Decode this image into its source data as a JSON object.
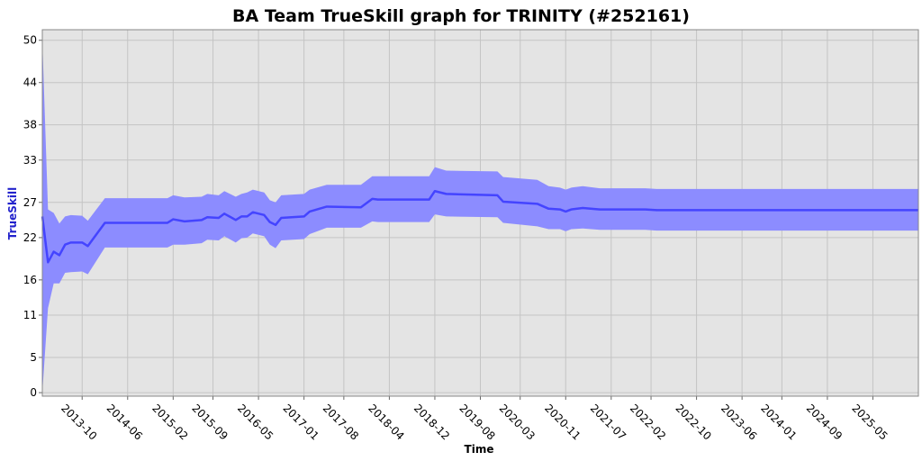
{
  "chart_data": {
    "type": "band-line",
    "title": "BA Team TrueSkill graph for TRINITY (#252161)",
    "xlabel": "Time",
    "ylabel": "TrueSkill",
    "color": "#4444ff",
    "band_color": "#8c8cff",
    "x": [
      "2013-03",
      "2013-04",
      "2013-05",
      "2013-06",
      "2013-07",
      "2013-08",
      "2013-10",
      "2013-11",
      "2014-02",
      "2015-01",
      "2015-02",
      "2015-04",
      "2015-07",
      "2015-08",
      "2015-10",
      "2015-11",
      "2016-01",
      "2016-02",
      "2016-03",
      "2016-04",
      "2016-06",
      "2016-07",
      "2016-08",
      "2016-09",
      "2017-01",
      "2017-02",
      "2017-05",
      "2017-11",
      "2018-01",
      "2018-02",
      "2018-11",
      "2018-12",
      "2019-02",
      "2019-11",
      "2019-12",
      "2020-06",
      "2020-08",
      "2020-10",
      "2020-11",
      "2020-12",
      "2021-02",
      "2021-05",
      "2022-01",
      "2022-03",
      "2026-01"
    ],
    "values": [
      25,
      18.5,
      20,
      19.5,
      21,
      21.3,
      21.3,
      20.8,
      24.1,
      24.1,
      24.6,
      24.3,
      24.5,
      24.9,
      24.8,
      25.4,
      24.5,
      25,
      25,
      25.6,
      25.2,
      24.2,
      23.8,
      24.8,
      25,
      25.7,
      26.4,
      26.3,
      27.5,
      27.4,
      27.4,
      28.6,
      28.2,
      28,
      27.1,
      26.8,
      26.1,
      26,
      25.7,
      26,
      26.2,
      26,
      26,
      25.9,
      25.9
    ],
    "lower": [
      0,
      12,
      15.5,
      15.5,
      17,
      17.1,
      17.2,
      16.8,
      20.6,
      20.6,
      21,
      21,
      21.2,
      21.7,
      21.6,
      22.2,
      21.3,
      21.9,
      22,
      22.6,
      22.2,
      21,
      20.5,
      21.6,
      21.8,
      22.5,
      23.4,
      23.4,
      24.3,
      24.2,
      24.2,
      25.3,
      25,
      24.9,
      24.1,
      23.6,
      23.2,
      23.2,
      22.9,
      23.2,
      23.3,
      23.1,
      23.1,
      23,
      23
    ],
    "upper": [
      50,
      26,
      25.5,
      24,
      25,
      25.2,
      25.1,
      24.4,
      27.6,
      27.6,
      28,
      27.7,
      27.8,
      28.2,
      28,
      28.6,
      27.8,
      28.2,
      28.4,
      28.8,
      28.4,
      27.3,
      27,
      28,
      28.2,
      28.8,
      29.5,
      29.5,
      30.7,
      30.7,
      30.7,
      32,
      31.5,
      31.4,
      30.6,
      30.2,
      29.3,
      29.1,
      28.8,
      29.1,
      29.3,
      29,
      29,
      28.9,
      28.9
    ],
    "xlim": [
      "2013-03",
      "2026-01"
    ],
    "xticks": [
      "2013-10",
      "2014-06",
      "2015-02",
      "2015-09",
      "2016-05",
      "2017-01",
      "2017-08",
      "2018-04",
      "2018-12",
      "2019-08",
      "2020-03",
      "2020-11",
      "2021-07",
      "2022-02",
      "2022-10",
      "2023-06",
      "2024-01",
      "2024-09",
      "2025-05"
    ],
    "ylim": [
      -0.5,
      51.5
    ],
    "yticks": [
      0,
      5,
      11,
      16,
      22,
      27,
      33,
      38,
      44,
      50
    ],
    "grid": true
  }
}
